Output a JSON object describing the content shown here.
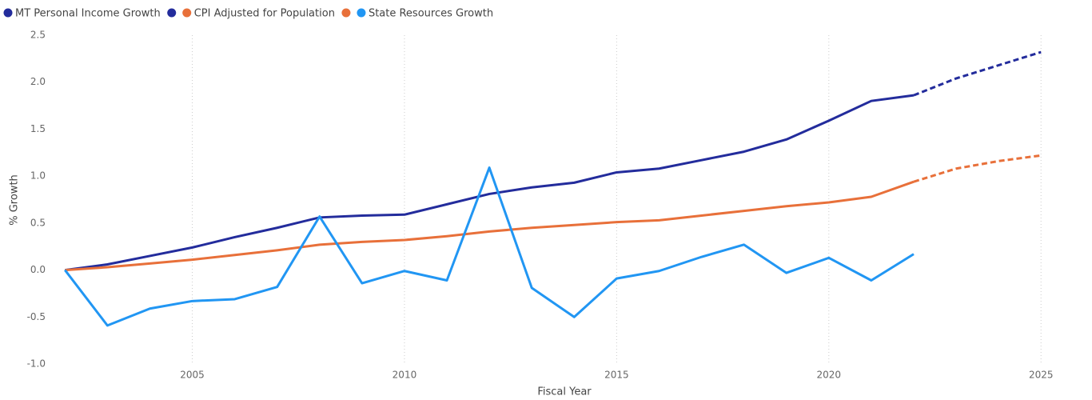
{
  "chart_data": {
    "type": "line",
    "x_label": "Fiscal Year",
    "y_label": "% Growth",
    "x": [
      2002,
      2003,
      2004,
      2005,
      2006,
      2007,
      2008,
      2009,
      2010,
      2011,
      2012,
      2013,
      2014,
      2015,
      2016,
      2017,
      2018,
      2019,
      2020,
      2021,
      2022,
      2023,
      2024,
      2025
    ],
    "series": [
      {
        "name": "MT Personal Income Growth",
        "color": "#232c9c",
        "dashed": false,
        "values": [
          0,
          0.06,
          0.15,
          0.24,
          0.35,
          0.45,
          0.56,
          0.58,
          0.59,
          0.7,
          0.81,
          0.88,
          0.93,
          1.04,
          1.08,
          1.17,
          1.26,
          1.39,
          1.59,
          1.8,
          1.86,
          null,
          null,
          null
        ]
      },
      {
        "name": null,
        "color": "#232c9c",
        "dashed": true,
        "values": [
          null,
          null,
          null,
          null,
          null,
          null,
          null,
          null,
          null,
          null,
          null,
          null,
          null,
          null,
          null,
          null,
          null,
          null,
          null,
          null,
          1.86,
          2.04,
          2.18,
          2.32
        ]
      },
      {
        "name": "CPI Adjusted for Population",
        "color": "#e8703a",
        "dashed": false,
        "values": [
          0,
          0.03,
          0.07,
          0.11,
          0.16,
          0.21,
          0.27,
          0.3,
          0.32,
          0.36,
          0.41,
          0.45,
          0.48,
          0.51,
          0.53,
          0.58,
          0.63,
          0.68,
          0.72,
          0.78,
          0.94,
          null,
          null,
          null
        ]
      },
      {
        "name": null,
        "color": "#e8703a",
        "dashed": true,
        "values": [
          null,
          null,
          null,
          null,
          null,
          null,
          null,
          null,
          null,
          null,
          null,
          null,
          null,
          null,
          null,
          null,
          null,
          null,
          null,
          null,
          0.94,
          1.08,
          1.16,
          1.22
        ]
      },
      {
        "name": "State Resources Growth",
        "color": "#2196f3",
        "dashed": false,
        "values": [
          0,
          -0.59,
          -0.41,
          -0.33,
          -0.31,
          -0.18,
          0.57,
          -0.14,
          -0.01,
          -0.11,
          1.09,
          -0.19,
          -0.5,
          -0.09,
          -0.01,
          0.14,
          0.27,
          -0.03,
          0.13,
          -0.11,
          0.17,
          null,
          null,
          null
        ]
      }
    ],
    "xlim": [
      2001.75,
      2025.9
    ],
    "xticks": [
      2005,
      2010,
      2015,
      2020,
      2025
    ],
    "ylim": [
      -1,
      2.5
    ],
    "yticks": [
      2.5,
      {
        "value": 2,
        "label": "2.0"
      },
      1.5,
      {
        "value": 1,
        "label": "1.0"
      },
      0.5,
      {
        "value": 0,
        "label": "0.0"
      },
      -0.5,
      {
        "value": -1,
        "label": "-1.0"
      }
    ],
    "grid": true,
    "legend": "top-left"
  }
}
